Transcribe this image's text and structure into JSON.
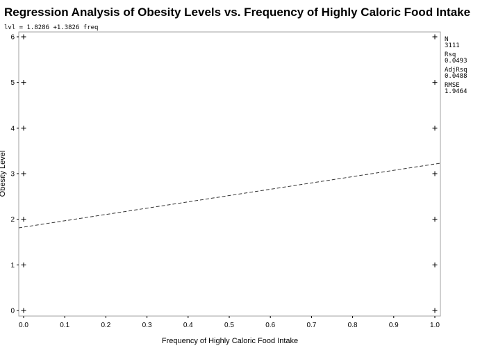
{
  "chart_data": {
    "type": "scatter",
    "title": "Regression Analysis of Obesity Levels vs. Frequency of Highly Caloric Food Intake",
    "equation": "lvl = 1.8286 +1.3826 freq",
    "xlabel": "Frequency of Highly Caloric Food Intake",
    "ylabel": "Obesity Level",
    "xlim": [
      0,
      1
    ],
    "ylim": [
      0,
      6
    ],
    "x_ticks": [
      "0.0",
      "0.1",
      "0.2",
      "0.3",
      "0.4",
      "0.5",
      "0.6",
      "0.7",
      "0.8",
      "0.9",
      "1.0"
    ],
    "y_ticks": [
      "0",
      "1",
      "2",
      "3",
      "4",
      "5",
      "6"
    ],
    "points": [
      {
        "x": 0,
        "y": 0
      },
      {
        "x": 0,
        "y": 1
      },
      {
        "x": 0,
        "y": 2
      },
      {
        "x": 0,
        "y": 3
      },
      {
        "x": 0,
        "y": 4
      },
      {
        "x": 0,
        "y": 5
      },
      {
        "x": 0,
        "y": 6
      },
      {
        "x": 1,
        "y": 0
      },
      {
        "x": 1,
        "y": 1
      },
      {
        "x": 1,
        "y": 2
      },
      {
        "x": 1,
        "y": 3
      },
      {
        "x": 1,
        "y": 4
      },
      {
        "x": 1,
        "y": 5
      },
      {
        "x": 1,
        "y": 6
      }
    ],
    "fit_line": {
      "intercept": 1.8286,
      "slope": 1.3826,
      "style": "dashed"
    },
    "grid": false,
    "stats": [
      {
        "label": "N",
        "value": "3111"
      },
      {
        "label": "Rsq",
        "value": "0.0493"
      },
      {
        "label": "AdjRsq",
        "value": "0.0488"
      },
      {
        "label": "RMSE",
        "value": "1.9464"
      }
    ]
  }
}
